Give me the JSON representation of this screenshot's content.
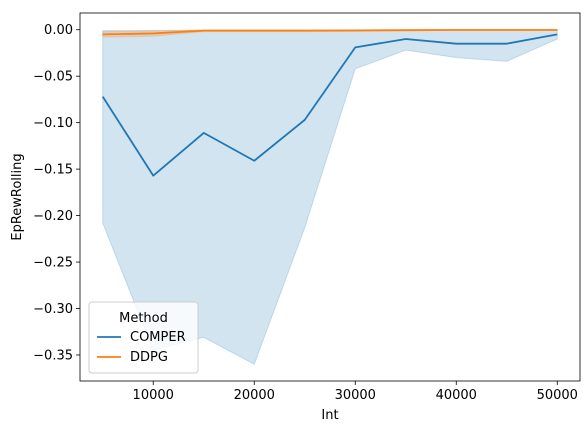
{
  "chart_data": {
    "type": "line",
    "xlabel": "Int",
    "ylabel": "EpRewRolling",
    "xlim": [
      2750,
      52250
    ],
    "ylim": [
      -0.378,
      0.018
    ],
    "xticks": [
      10000,
      20000,
      30000,
      40000,
      50000
    ],
    "xtick_labels": [
      "10000",
      "20000",
      "30000",
      "40000",
      "50000"
    ],
    "yticks": [
      0.0,
      -0.05,
      -0.1,
      -0.15,
      -0.2,
      -0.25,
      -0.3,
      -0.35
    ],
    "ytick_labels": [
      "0.00",
      "−0.05",
      "−0.10",
      "−0.15",
      "−0.20",
      "−0.25",
      "−0.30",
      "−0.35"
    ],
    "grid": false,
    "legend": {
      "title": "Method",
      "placement": "lower-left"
    },
    "x": [
      5000,
      10000,
      15000,
      20000,
      25000,
      30000,
      35000,
      40000,
      45000,
      50000
    ],
    "series": [
      {
        "name": "COMPER",
        "color": "#1f77b4",
        "values": [
          -0.072,
          -0.157,
          -0.111,
          -0.141,
          -0.097,
          -0.019,
          -0.01,
          -0.015,
          -0.015,
          -0.005
        ],
        "band_upper": [
          -0.001,
          -0.001,
          -0.001,
          -0.001,
          -0.001,
          -0.001,
          -0.0005,
          0.0,
          0.0,
          0.0
        ],
        "band_lower": [
          -0.208,
          -0.345,
          -0.331,
          -0.36,
          -0.213,
          -0.042,
          -0.022,
          -0.03,
          -0.034,
          -0.01
        ]
      },
      {
        "name": "DDPG",
        "color": "#ff7f0e",
        "values": [
          -0.005,
          -0.004,
          -0.001,
          -0.001,
          -0.001,
          -0.0008,
          -0.0005,
          -0.0003,
          -0.0003,
          -0.0003
        ],
        "band_upper": [
          -0.002,
          -0.001,
          0.0,
          0.0,
          0.0,
          0.0,
          0.0,
          0.0,
          0.0,
          0.0
        ],
        "band_lower": [
          -0.008,
          -0.007,
          -0.002,
          -0.002,
          -0.002,
          -0.0016,
          -0.001,
          -0.0006,
          -0.0006,
          -0.0006
        ]
      }
    ]
  }
}
